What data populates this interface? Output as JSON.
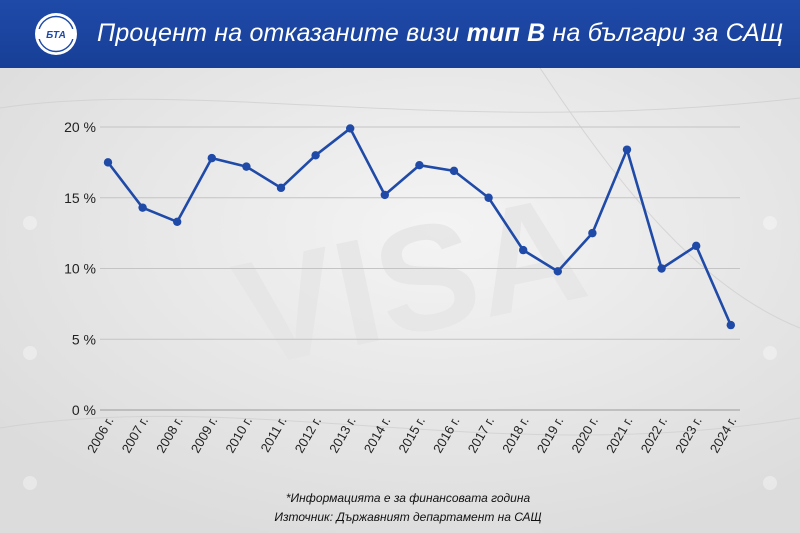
{
  "header": {
    "title_part1": "Процент на отказаните визи ",
    "title_bold": "тип В",
    "title_part2": " на българи за САЩ",
    "logo_text": "БТА",
    "bg_color": "#1f4aa8"
  },
  "chart_data": {
    "type": "line",
    "categories": [
      "2006 г.",
      "2007 г.",
      "2008 г.",
      "2009 г.",
      "2010 г.",
      "2011 г.",
      "2012 г.",
      "2013 г.",
      "2014 г.",
      "2015 г.",
      "2016 г.",
      "2017 г.",
      "2018 г.",
      "2019 г.",
      "2020 г.",
      "2021 г.",
      "2022 г.",
      "2023 г.",
      "2024 г."
    ],
    "series": [
      {
        "values": [
          17.5,
          14.3,
          13.3,
          17.8,
          17.2,
          15.7,
          18.0,
          19.9,
          15.2,
          17.3,
          16.9,
          15.0,
          11.3,
          9.8,
          12.5,
          18.4,
          10.0,
          11.6,
          6.0
        ],
        "color": "#1f4aa8"
      }
    ],
    "yticks": [
      "0 %",
      "5 %",
      "10 %",
      "15 %",
      "20 %"
    ],
    "ylim": [
      0,
      20
    ],
    "grid": true,
    "legend": "none"
  },
  "footer": {
    "note": "*Информацията е за финансовата година",
    "source": "Източник: Държавният департамент на САЩ"
  }
}
